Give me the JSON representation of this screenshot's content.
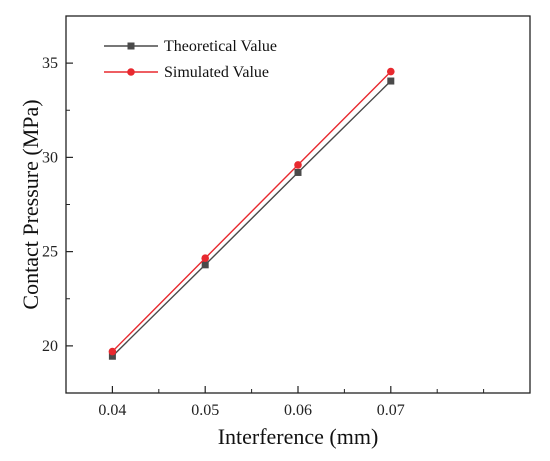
{
  "chart_data": {
    "type": "line",
    "title": "",
    "xlabel": "Interference (mm)",
    "ylabel": "Contact Pressure (MPa)",
    "x": [
      0.04,
      0.05,
      0.06,
      0.07
    ],
    "x_tick_labels": [
      "0.04",
      "0.05",
      "0.06",
      "0.07"
    ],
    "xlim": [
      0.035,
      0.085
    ],
    "ylim": [
      17.5,
      37.5
    ],
    "y_ticks": [
      20,
      25,
      30,
      35
    ],
    "y_tick_labels": [
      "20",
      "25",
      "30",
      "35"
    ],
    "grid": false,
    "legend_position": "top-left",
    "series": [
      {
        "name": "Theoretical Value",
        "values": [
          19.45,
          24.3,
          29.2,
          34.05
        ],
        "color": "#4a4a4a",
        "marker": "square"
      },
      {
        "name": "Simulated Value",
        "values": [
          19.7,
          24.65,
          29.6,
          34.55
        ],
        "color": "#e8292f",
        "marker": "circle"
      }
    ]
  }
}
